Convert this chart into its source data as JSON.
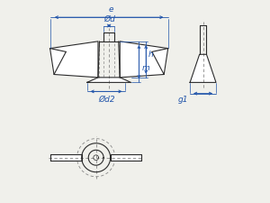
{
  "bg_color": "#f0f0eb",
  "line_color": "#2a2a2a",
  "dim_color": "#2255aa",
  "dashed_color": "#888888",
  "labels": {
    "e": "e",
    "d": "Ød",
    "h": "h",
    "m": "m",
    "d2": "Ød2",
    "g1": "g1"
  },
  "font_size": 7,
  "dim_font_size": 6.5
}
